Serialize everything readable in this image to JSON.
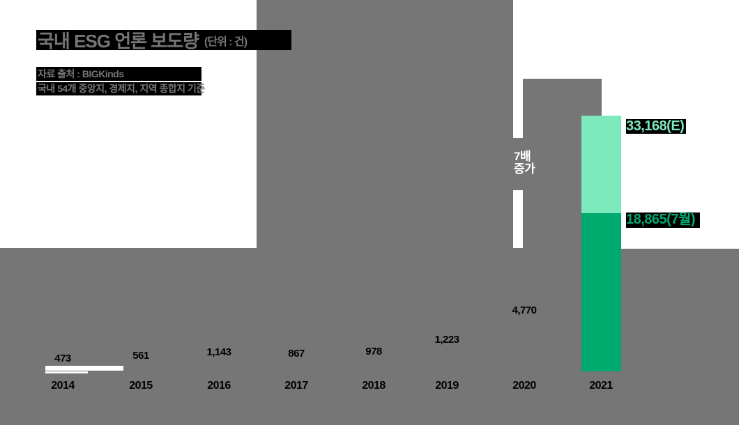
{
  "title": {
    "text": "국내 ESG 언론 보도량",
    "unit": "(단위 : 건)"
  },
  "source": {
    "line1": "자료 출처 : BIGKinds",
    "line2": "국내 54개 중앙지, 경제지, 지역 종합지 기준"
  },
  "annotation": {
    "line1": "7배",
    "line2": "증가"
  },
  "bar_2021": {
    "estimate_label": "33,168(E)",
    "july_label": "18,865(7월)"
  },
  "colors": {
    "background_gray": "#767676",
    "panel_white": "#ffffff",
    "highlight_black": "#000000",
    "light_green": "#7EE9BC",
    "dark_green": "#00A96E"
  },
  "chart_data": {
    "type": "bar",
    "title": "국내 ESG 언론 보도량",
    "unit": "건",
    "source": "BIGKinds (국내 54개 중앙지, 경제지, 지역 종합지 기준)",
    "categories": [
      "2014",
      "2015",
      "2016",
      "2017",
      "2018",
      "2019",
      "2020",
      "2021"
    ],
    "values": [
      473,
      561,
      1143,
      867,
      978,
      1223,
      4770,
      33168
    ],
    "value_labels": [
      "473",
      "561",
      "1,143",
      "867",
      "978",
      "1,223",
      "4,770",
      "33,168(E)"
    ],
    "series_2021_breakdown": {
      "july_actual": 18865,
      "year_estimate": 33168
    },
    "annotation": "7배 증가",
    "ylim": [
      0,
      33168
    ],
    "legend": "none",
    "grid": false
  },
  "layout_labels": {
    "bottom_values": [
      "473",
      "561",
      "1,143",
      "867",
      "978",
      "1,223",
      "4,770"
    ]
  }
}
